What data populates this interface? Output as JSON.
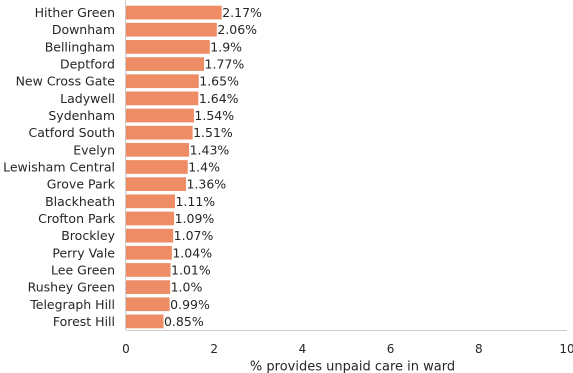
{
  "chart_data": {
    "type": "bar",
    "orientation": "horizontal",
    "categories": [
      "Hither Green",
      "Downham",
      "Bellingham",
      "Deptford",
      "New Cross Gate",
      "Ladywell",
      "Sydenham",
      "Catford South",
      "Evelyn",
      "Lewisham Central",
      "Grove Park",
      "Blackheath",
      "Crofton Park",
      "Brockley",
      "Perry Vale",
      "Lee Green",
      "Rushey Green",
      "Telegraph Hill",
      "Forest Hill"
    ],
    "values": [
      2.17,
      2.06,
      1.9,
      1.77,
      1.65,
      1.64,
      1.54,
      1.51,
      1.43,
      1.4,
      1.36,
      1.11,
      1.09,
      1.07,
      1.04,
      1.01,
      1.0,
      0.99,
      0.85
    ],
    "value_labels": [
      "2.17%",
      "2.06%",
      "1.9%",
      "1.77%",
      "1.65%",
      "1.64%",
      "1.54%",
      "1.51%",
      "1.43%",
      "1.4%",
      "1.36%",
      "1.11%",
      "1.09%",
      "1.07%",
      "1.04%",
      "1.01%",
      "1.0%",
      "0.99%",
      "0.85%"
    ],
    "xlabel": "% provides unpaid care in ward",
    "ylabel": "",
    "xlim": [
      0,
      10
    ],
    "xticks": [
      0,
      2,
      4,
      6,
      8,
      10
    ],
    "xtick_labels": [
      "0",
      "2",
      "4",
      "6",
      "8",
      "10"
    ],
    "grid": false,
    "bar_color": "#ee8c66"
  }
}
